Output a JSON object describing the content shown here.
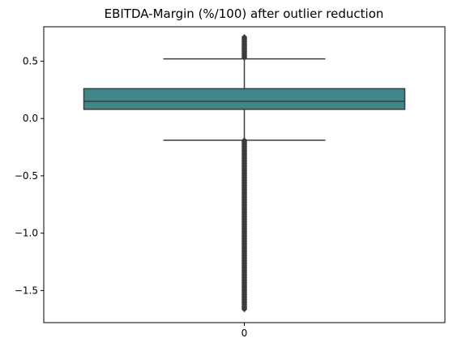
{
  "chart_data": {
    "type": "box",
    "title": "EBITDA-Margin (%/100) after outlier reduction",
    "xlabel": "",
    "ylabel": "",
    "categories": [
      "0"
    ],
    "ylim": [
      -1.78,
      0.8
    ],
    "yticks": [
      0.5,
      0.0,
      -0.5,
      -1.0,
      -1.5
    ],
    "ytick_labels": [
      "0.5",
      "0.0",
      "−0.5",
      "−1.0",
      "−1.5"
    ],
    "box": {
      "q1": 0.08,
      "median": 0.15,
      "q3": 0.26,
      "whisker_low": -0.19,
      "whisker_high": 0.52
    },
    "outliers": {
      "upper_range": [
        0.52,
        0.71
      ],
      "lower_range": [
        -1.67,
        -0.19
      ]
    },
    "grid": false,
    "legend": "none",
    "colors": {
      "box_fill": "#3f8788",
      "lines": "#3c3c3c",
      "axes": "#000000"
    }
  }
}
